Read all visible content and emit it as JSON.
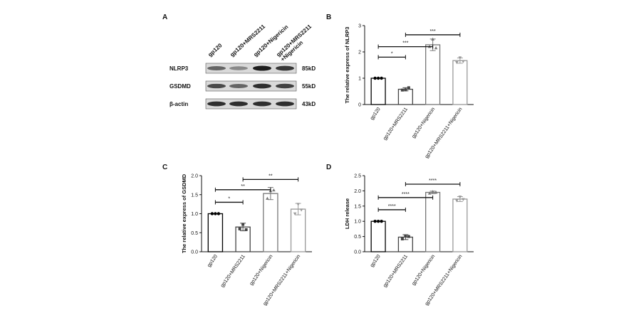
{
  "panels": {
    "a": {
      "label": "A"
    },
    "b": {
      "label": "B"
    },
    "c": {
      "label": "C"
    },
    "d": {
      "label": "D"
    }
  },
  "blot": {
    "lanes": [
      "gp120",
      "gp120+MRS2211",
      "gp120+Nigericin",
      "gp120+MRS2211\n+Nigericin"
    ],
    "proteins": [
      "NLRP3",
      "GSDMD",
      "β-actin"
    ],
    "sizes": [
      "85kD",
      "55kD",
      "43kD"
    ],
    "band_intensity": [
      [
        0.55,
        0.35,
        0.95,
        0.8
      ],
      [
        0.7,
        0.55,
        0.85,
        0.75
      ],
      [
        0.85,
        0.85,
        0.85,
        0.85
      ]
    ]
  },
  "chart_data": [
    {
      "id": "b",
      "type": "bar",
      "categories": [
        "gp120",
        "gp120+MRS2211",
        "gp120+Nigericin",
        "gp120+MRS2211+Nigericin"
      ],
      "values": [
        1.0,
        0.58,
        2.27,
        1.67
      ],
      "errors": [
        0.0,
        0.06,
        0.22,
        0.1
      ],
      "points": [
        [
          1.0,
          1.0,
          1.0
        ],
        [
          0.55,
          0.56,
          0.64
        ],
        [
          2.2,
          2.48,
          2.15
        ],
        [
          1.6,
          1.78,
          1.64
        ]
      ],
      "colors": [
        "#000000",
        "#444444",
        "#777777",
        "#999999"
      ],
      "ylabel": "The relative express of NLRP3",
      "ylim": [
        0,
        3
      ],
      "yticks": [
        0,
        1,
        2,
        3
      ],
      "sig": [
        {
          "from": 0,
          "to": 1,
          "y": 1.8,
          "label": "*"
        },
        {
          "from": 0,
          "to": 2,
          "y": 2.2,
          "label": "***"
        },
        {
          "from": 1,
          "to": 3,
          "y": 2.65,
          "label": "***"
        }
      ]
    },
    {
      "id": "c",
      "type": "bar",
      "categories": [
        "gp120",
        "gp120+MRS2211",
        "gp120+Nigericin",
        "gp120+MRS2211+Nigericin"
      ],
      "values": [
        1.0,
        0.65,
        1.53,
        1.12
      ],
      "errors": [
        0.0,
        0.1,
        0.16,
        0.15
      ],
      "points": [
        [
          1.0,
          1.0,
          1.0
        ],
        [
          0.6,
          0.72,
          0.58
        ],
        [
          1.4,
          1.6,
          1.62
        ],
        [
          1.0,
          1.25,
          1.1
        ]
      ],
      "colors": [
        "#000000",
        "#444444",
        "#777777",
        "#999999"
      ],
      "ylabel": "The relative express of GSDMD",
      "ylim": [
        0,
        2.0
      ],
      "yticks": [
        0.0,
        0.5,
        1.0,
        1.5,
        2.0
      ],
      "sig": [
        {
          "from": 0,
          "to": 1,
          "y": 1.3,
          "label": "*"
        },
        {
          "from": 0,
          "to": 2,
          "y": 1.63,
          "label": "**"
        },
        {
          "from": 1,
          "to": 3,
          "y": 1.9,
          "label": "**"
        }
      ]
    },
    {
      "id": "d",
      "type": "bar",
      "categories": [
        "gp120",
        "gp120+MRS2211",
        "gp120+Nigericin",
        "gp120+MRS2211+Nigericin"
      ],
      "values": [
        1.0,
        0.48,
        1.95,
        1.73
      ],
      "errors": [
        0.0,
        0.08,
        0.04,
        0.08
      ],
      "points": [
        [
          1.0,
          1.0,
          1.0
        ],
        [
          0.42,
          0.52,
          0.5
        ],
        [
          1.92,
          1.97,
          1.95
        ],
        [
          1.68,
          1.8,
          1.72
        ]
      ],
      "colors": [
        "#000000",
        "#444444",
        "#777777",
        "#999999"
      ],
      "ylabel": "LDH release",
      "ylim": [
        0,
        2.5
      ],
      "yticks": [
        0.0,
        0.5,
        1.0,
        1.5,
        2.0,
        2.5
      ],
      "sig": [
        {
          "from": 0,
          "to": 1,
          "y": 1.38,
          "label": "****"
        },
        {
          "from": 0,
          "to": 2,
          "y": 1.78,
          "label": "****"
        },
        {
          "from": 1,
          "to": 3,
          "y": 2.22,
          "label": "****"
        }
      ]
    }
  ]
}
